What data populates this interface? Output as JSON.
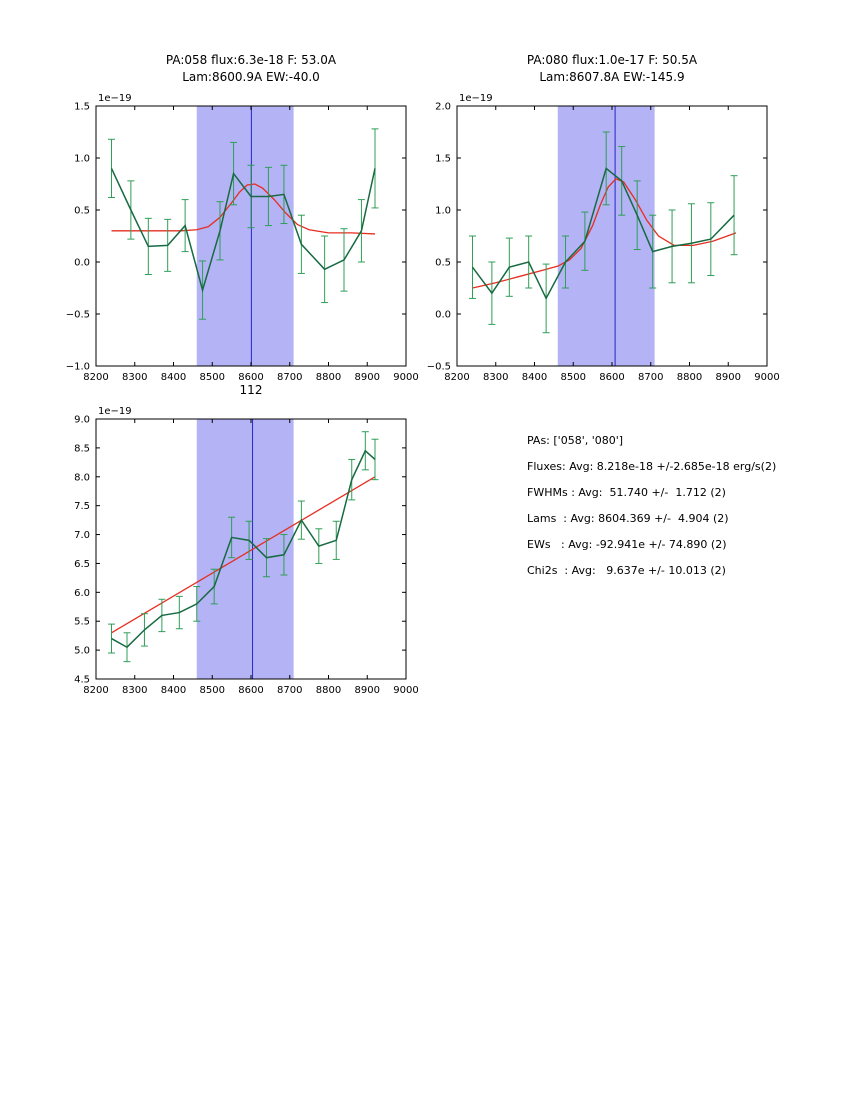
{
  "style": {
    "data_color": "#176a42",
    "err_color": "#2f9e57",
    "fit_color": "#e62e20",
    "band_color": "#b3b3f5",
    "vline_color": "#2727c8",
    "axis_color": "#000000",
    "background": "#ffffff"
  },
  "chart_data": [
    {
      "id": "pa058",
      "type": "line",
      "title": [
        "PA:058 flux:6.3e-18 F: 53.0A",
        "Lam:8600.9A EW:-40.0"
      ],
      "offset_label": "1e−19",
      "xlim": [
        8200,
        9000
      ],
      "ylim": [
        -1.0,
        1.5
      ],
      "xticks": [
        8200,
        8300,
        8400,
        8500,
        8600,
        8700,
        8800,
        8900,
        9000
      ],
      "yticks": [
        -1.0,
        -0.5,
        0.0,
        0.5,
        1.0,
        1.5
      ],
      "band": [
        8460,
        8710
      ],
      "vline": 8601,
      "series": [
        {
          "name": "data",
          "x": [
            8240,
            8290,
            8335,
            8385,
            8430,
            8475,
            8520,
            8555,
            8600,
            8645,
            8685,
            8730,
            8790,
            8840,
            8885,
            8920
          ],
          "y": [
            0.9,
            0.5,
            0.15,
            0.16,
            0.35,
            -0.27,
            0.3,
            0.85,
            0.63,
            0.63,
            0.65,
            0.17,
            -0.07,
            0.02,
            0.3,
            0.9
          ],
          "yerr": [
            0.28,
            0.28,
            0.27,
            0.25,
            0.25,
            0.28,
            0.28,
            0.3,
            0.3,
            0.28,
            0.28,
            0.28,
            0.32,
            0.3,
            0.3,
            0.38
          ]
        },
        {
          "name": "fit",
          "x": [
            8240,
            8300,
            8360,
            8420,
            8460,
            8490,
            8520,
            8550,
            8570,
            8590,
            8610,
            8630,
            8660,
            8690,
            8720,
            8750,
            8800,
            8860,
            8920
          ],
          "y": [
            0.3,
            0.3,
            0.3,
            0.3,
            0.31,
            0.34,
            0.43,
            0.57,
            0.67,
            0.74,
            0.75,
            0.71,
            0.6,
            0.47,
            0.36,
            0.31,
            0.28,
            0.28,
            0.27
          ]
        }
      ]
    },
    {
      "id": "pa080",
      "type": "line",
      "title": [
        "PA:080 flux:1.0e-17 F: 50.5A",
        "Lam:8607.8A EW:-145.9"
      ],
      "offset_label": "1e−19",
      "xlim": [
        8200,
        9000
      ],
      "ylim": [
        -0.5,
        2.0
      ],
      "xticks": [
        8200,
        8300,
        8400,
        8500,
        8600,
        8700,
        8800,
        8900,
        9000
      ],
      "yticks": [
        -0.5,
        0.0,
        0.5,
        1.0,
        1.5,
        2.0
      ],
      "band": [
        8460,
        8710
      ],
      "vline": 8608,
      "series": [
        {
          "name": "data",
          "x": [
            8240,
            8290,
            8335,
            8385,
            8430,
            8480,
            8530,
            8585,
            8625,
            8665,
            8705,
            8755,
            8805,
            8855,
            8915
          ],
          "y": [
            0.45,
            0.2,
            0.45,
            0.5,
            0.15,
            0.5,
            0.7,
            1.4,
            1.28,
            0.95,
            0.6,
            0.65,
            0.68,
            0.72,
            0.95
          ],
          "yerr": [
            0.3,
            0.3,
            0.28,
            0.25,
            0.33,
            0.25,
            0.28,
            0.35,
            0.33,
            0.33,
            0.35,
            0.35,
            0.38,
            0.35,
            0.38
          ]
        },
        {
          "name": "fit",
          "x": [
            8240,
            8300,
            8360,
            8420,
            8460,
            8490,
            8520,
            8550,
            8570,
            8590,
            8610,
            8630,
            8660,
            8690,
            8720,
            8760,
            8810,
            8860,
            8920
          ],
          "y": [
            0.25,
            0.3,
            0.36,
            0.42,
            0.46,
            0.52,
            0.63,
            0.85,
            1.05,
            1.22,
            1.3,
            1.27,
            1.1,
            0.9,
            0.75,
            0.66,
            0.66,
            0.7,
            0.78
          ]
        }
      ]
    },
    {
      "id": "112",
      "type": "line",
      "title": [
        "112"
      ],
      "offset_label": "1e−19",
      "xlim": [
        8200,
        9000
      ],
      "ylim": [
        4.5,
        9.0
      ],
      "xticks": [
        8200,
        8300,
        8400,
        8500,
        8600,
        8700,
        8800,
        8900,
        9000
      ],
      "yticks": [
        4.5,
        5.0,
        5.5,
        6.0,
        6.5,
        7.0,
        7.5,
        8.0,
        8.5,
        9.0
      ],
      "band": [
        8460,
        8710
      ],
      "vline": 8604,
      "series": [
        {
          "name": "data",
          "x": [
            8240,
            8280,
            8325,
            8370,
            8415,
            8460,
            8505,
            8550,
            8595,
            8640,
            8685,
            8730,
            8775,
            8820,
            8860,
            8895,
            8920
          ],
          "y": [
            5.2,
            5.05,
            5.35,
            5.6,
            5.65,
            5.8,
            6.1,
            6.95,
            6.9,
            6.6,
            6.65,
            7.25,
            6.8,
            6.9,
            7.95,
            8.45,
            8.3
          ],
          "yerr": [
            0.25,
            0.25,
            0.28,
            0.28,
            0.28,
            0.3,
            0.3,
            0.35,
            0.33,
            0.33,
            0.35,
            0.33,
            0.3,
            0.33,
            0.35,
            0.33,
            0.35
          ]
        },
        {
          "name": "fit",
          "x": [
            8240,
            8920
          ],
          "y": [
            5.3,
            8.0
          ]
        }
      ]
    }
  ],
  "info_panel": {
    "lines": [
      "PAs: ['058', '080']",
      "Fluxes: Avg: 8.218e-18 +/-2.685e-18 erg/s(2)",
      "FWHMs : Avg:  51.740 +/-  1.712 (2)",
      "Lams  : Avg: 8604.369 +/-  4.904 (2)",
      "EWs   : Avg: -92.941e +/- 74.890 (2)",
      "Chi2s  : Avg:   9.637e +/- 10.013 (2)"
    ]
  }
}
